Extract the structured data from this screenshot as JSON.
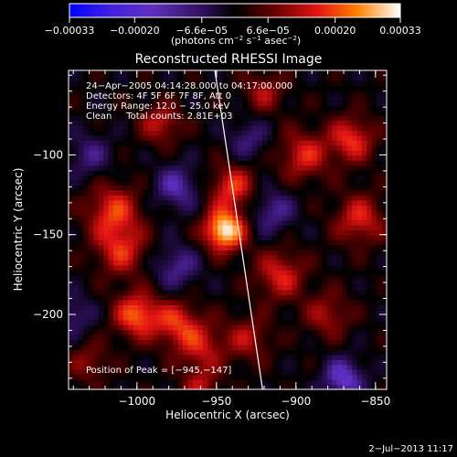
{
  "chart_data": {
    "type": "heatmap",
    "title": "Reconstructed RHESSI Image",
    "xlabel": "Heliocentric X (arcsec)",
    "ylabel": "Heliocentric Y (arcsec)",
    "xlim": [
      -1043,
      -843
    ],
    "ylim": [
      -247,
      -47
    ],
    "x_ticks": [
      {
        "value": -1000,
        "label": "−1000"
      },
      {
        "value": -950,
        "label": "−950"
      },
      {
        "value": -900,
        "label": "−900"
      },
      {
        "value": -850,
        "label": "−850"
      }
    ],
    "y_ticks": [
      {
        "value": -100,
        "label": "−100"
      },
      {
        "value": -150,
        "label": "−150"
      },
      {
        "value": -200,
        "label": "−200"
      }
    ],
    "colorbar": {
      "range": [
        -0.00033,
        0.00033
      ],
      "ticks": [
        {
          "value": -0.00033,
          "label": "−0.00033"
        },
        {
          "value": -0.0002,
          "label": "−0.00020"
        },
        {
          "value": -6.6e-05,
          "label": "−6.6e−05"
        },
        {
          "value": 6.6e-05,
          "label": "6.6e−05"
        },
        {
          "value": 0.0002,
          "label": "0.00020"
        },
        {
          "value": 0.00033,
          "label": "0.00033"
        }
      ],
      "units_main": "(photons cm",
      "units_exp1": "−2",
      "units_mid": " s",
      "units_exp2": "−1",
      "units_end": " asec",
      "units_exp3": "−2",
      "units_close": ")"
    },
    "annotations": [
      "24−Apr−2005 04:14:28.000 to 04:17:00.000",
      "Detectors: 4F 5F 6F 7F 8F, Att 0",
      "Energy Range: 12.0 − 25.0 keV",
      "Clean     Total counts: 2.81E+03"
    ],
    "peak_label": "Position of Peak = [−945,−147]",
    "peak": {
      "x": -945,
      "y": -147,
      "value": 0.00033
    },
    "limb_line": [
      [
        -951,
        -47
      ],
      [
        -921,
        -247
      ]
    ],
    "sources": [
      {
        "x": -945,
        "y": -147,
        "value": 0.00033,
        "sigma": 9
      },
      {
        "x": -940,
        "y": -120,
        "value": 0.00018,
        "sigma": 10
      },
      {
        "x": -1015,
        "y": -135,
        "value": 0.00018,
        "sigma": 12
      },
      {
        "x": -1010,
        "y": -160,
        "value": 0.00016,
        "sigma": 11
      },
      {
        "x": -985,
        "y": -80,
        "value": 0.00014,
        "sigma": 9
      },
      {
        "x": -1000,
        "y": -200,
        "value": 0.00022,
        "sigma": 10
      },
      {
        "x": -975,
        "y": -205,
        "value": 0.00016,
        "sigma": 10
      },
      {
        "x": -960,
        "y": -220,
        "value": 0.00014,
        "sigma": 11
      },
      {
        "x": -930,
        "y": -215,
        "value": 0.00012,
        "sigma": 10
      },
      {
        "x": -910,
        "y": -175,
        "value": 0.00016,
        "sigma": 11
      },
      {
        "x": -895,
        "y": -100,
        "value": 0.00016,
        "sigma": 11
      },
      {
        "x": -865,
        "y": -90,
        "value": 0.00018,
        "sigma": 10
      },
      {
        "x": -860,
        "y": -140,
        "value": 0.00016,
        "sigma": 11
      },
      {
        "x": -880,
        "y": -200,
        "value": 0.00012,
        "sigma": 10
      },
      {
        "x": -1030,
        "y": -230,
        "value": 0.0001,
        "sigma": 9
      },
      {
        "x": -960,
        "y": -245,
        "value": 0.00012,
        "sigma": 8
      },
      {
        "x": -920,
        "y": -60,
        "value": 0.00012,
        "sigma": 9
      },
      {
        "x": -975,
        "y": -120,
        "value": -0.00014,
        "sigma": 10
      },
      {
        "x": -975,
        "y": -170,
        "value": -0.00012,
        "sigma": 10
      },
      {
        "x": -915,
        "y": -135,
        "value": -0.00012,
        "sigma": 10
      },
      {
        "x": -930,
        "y": -90,
        "value": -0.0001,
        "sigma": 9
      },
      {
        "x": -1030,
        "y": -100,
        "value": -0.0001,
        "sigma": 10
      },
      {
        "x": -870,
        "y": -240,
        "value": -0.00018,
        "sigma": 9
      },
      {
        "x": -1040,
        "y": -200,
        "value": -0.0001,
        "sigma": 9
      }
    ]
  },
  "timestamp": "2−Jul−2013 11:17"
}
